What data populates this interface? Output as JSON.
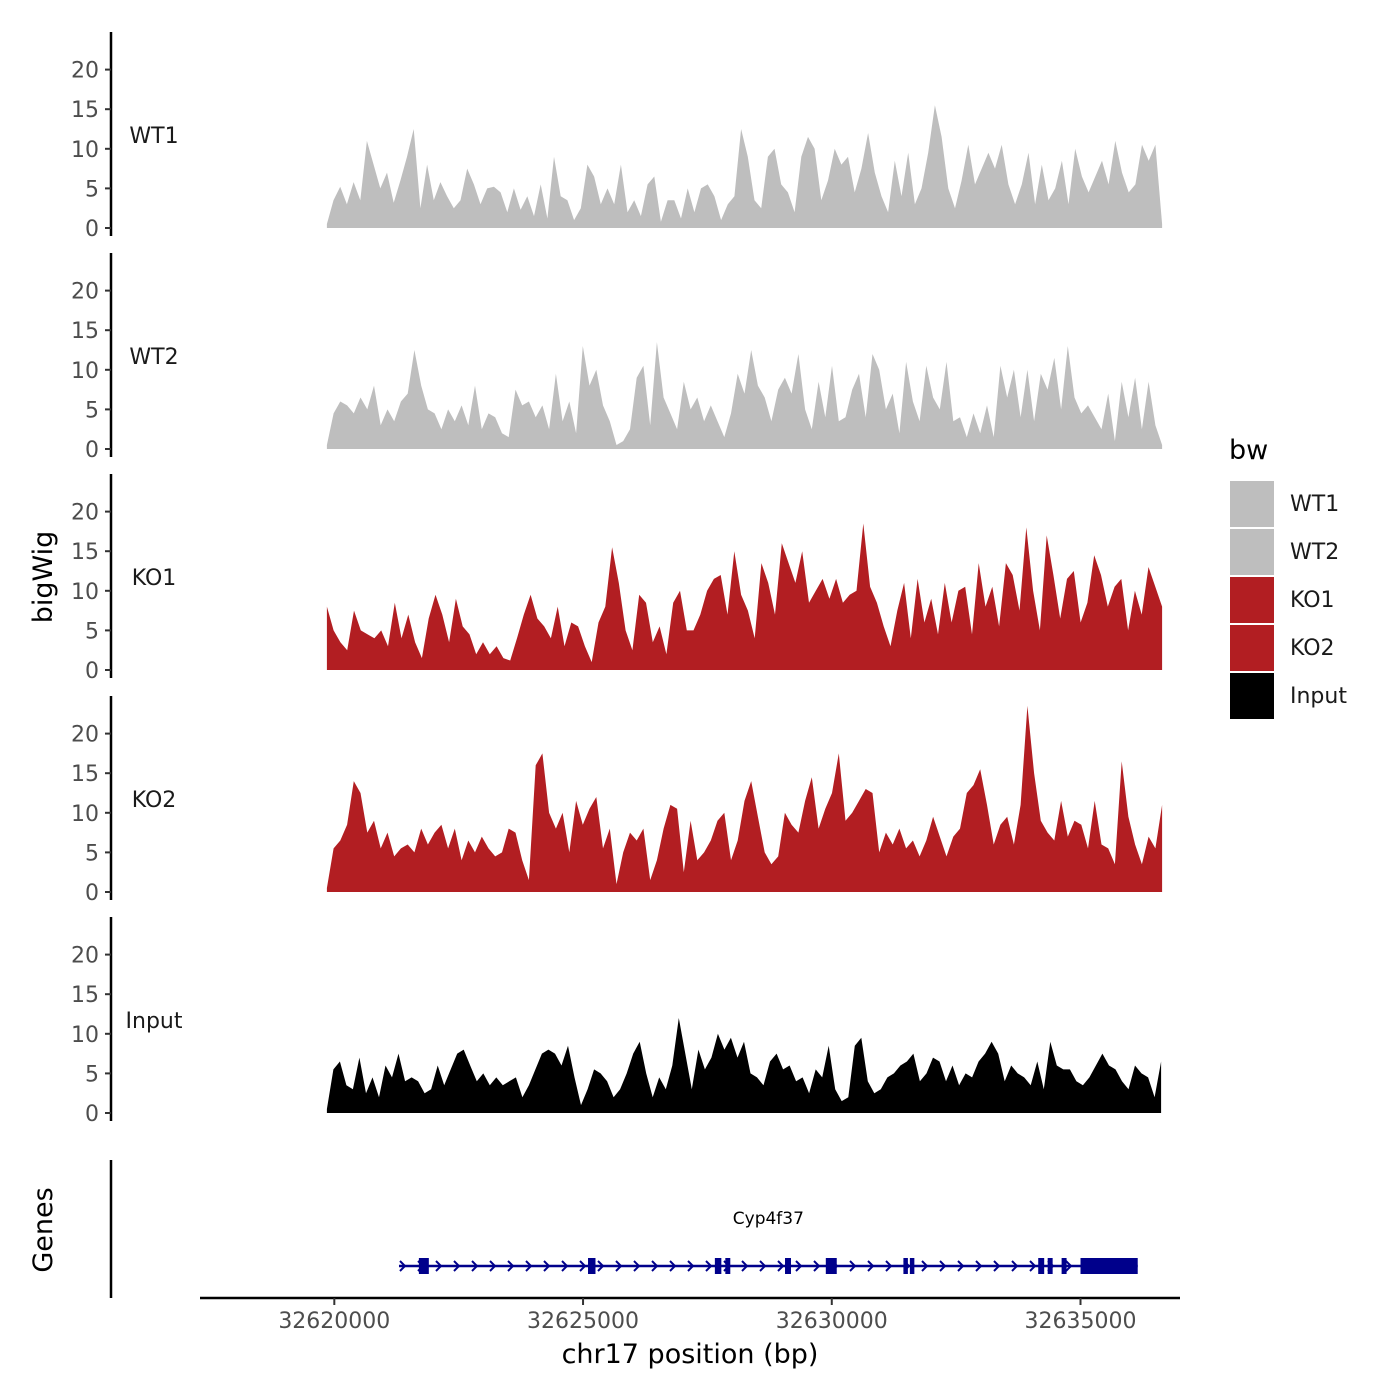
{
  "chart_data": {
    "type": "area",
    "x_range": [
      32617300,
      32637000
    ],
    "y_range": [
      0,
      25
    ],
    "y_ticks": [
      0,
      5,
      10,
      15,
      20
    ],
    "x_ticks": [
      32620000,
      32625000,
      32630000,
      32635000
    ],
    "x_tick_labels": [
      "32620000",
      "32625000",
      "32630000",
      "32635000"
    ],
    "xlabel": "chr17 position (bp)",
    "ylabel": "bigWig",
    "genes_label": "Genes",
    "legend": {
      "title": "bw",
      "position": "right",
      "entries": [
        {
          "label": "WT1",
          "color": "#bebebe"
        },
        {
          "label": "WT2",
          "color": "#bebebe"
        },
        {
          "label": "KO1",
          "color": "#b21e22"
        },
        {
          "label": "KO2",
          "color": "#b21e22"
        },
        {
          "label": "Input",
          "color": "#000000"
        }
      ]
    },
    "series": [
      {
        "name": "WT1",
        "color": "#bebebe",
        "x_start": 32619850,
        "x_end": 32636640,
        "values": [
          0.5,
          3.5,
          5.2,
          3.0,
          5.8,
          3.5,
          11.0,
          8.0,
          5.0,
          7.0,
          3.2,
          6.0,
          9.0,
          12.5,
          2.5,
          8.0,
          3.5,
          5.8,
          4.0,
          2.5,
          3.5,
          7.5,
          5.5,
          3.0,
          5.0,
          5.2,
          4.5,
          2.0,
          5.0,
          2.3,
          4.0,
          1.5,
          5.5,
          1.2,
          9.0,
          4.0,
          3.5,
          1.0,
          2.5,
          8.0,
          6.5,
          3.0,
          5.0,
          3.0,
          8.0,
          2.0,
          3.5,
          1.5,
          5.5,
          6.5,
          0.8,
          3.5,
          3.5,
          1.2,
          5.0,
          2.0,
          5.0,
          5.5,
          4.0,
          1.0,
          3.0,
          4.0,
          12.5,
          9.0,
          3.5,
          2.5,
          9.0,
          10.0,
          5.5,
          4.5,
          2.0,
          9.0,
          11.5,
          10.0,
          3.5,
          6.0,
          10.0,
          8.0,
          9.0,
          4.5,
          7.5,
          12.0,
          7.0,
          4.0,
          2.0,
          8.5,
          4.0,
          9.5,
          3.0,
          5.0,
          9.5,
          15.5,
          11.5,
          5.0,
          2.5,
          6.0,
          10.5,
          5.5,
          7.5,
          9.5,
          7.5,
          10.5,
          5.5,
          3.0,
          5.5,
          9.5,
          3.0,
          8.0,
          3.5,
          5.0,
          8.5,
          3.0,
          10.0,
          6.5,
          4.5,
          6.5,
          8.5,
          5.5,
          11.0,
          7.0,
          4.5,
          5.5,
          10.5,
          8.5,
          10.5,
          0.5
        ]
      },
      {
        "name": "WT2",
        "color": "#bebebe",
        "x_start": 32619850,
        "x_end": 32636640,
        "values": [
          0.5,
          4.5,
          6.0,
          5.5,
          4.5,
          6.5,
          5.0,
          8.0,
          3.0,
          5.0,
          3.5,
          6.0,
          7.0,
          12.5,
          8.0,
          5.0,
          4.5,
          2.5,
          5.0,
          3.5,
          5.5,
          3.0,
          8.0,
          2.5,
          4.5,
          4.0,
          2.0,
          1.5,
          7.5,
          5.5,
          6.0,
          4.0,
          5.5,
          2.5,
          9.5,
          3.5,
          6.0,
          2.0,
          13.0,
          8.0,
          10.0,
          5.5,
          3.5,
          0.5,
          1.0,
          2.5,
          9.0,
          10.5,
          3.0,
          13.5,
          6.5,
          4.5,
          2.5,
          8.5,
          5.0,
          6.5,
          3.5,
          5.5,
          3.5,
          1.5,
          4.5,
          9.5,
          7.0,
          12.5,
          8.0,
          6.5,
          3.5,
          7.5,
          9.0,
          7.0,
          12.0,
          5.0,
          2.5,
          8.5,
          4.0,
          10.5,
          3.5,
          4.0,
          7.5,
          9.5,
          4.0,
          12.0,
          10.0,
          5.0,
          7.0,
          2.0,
          11.0,
          6.0,
          3.5,
          10.5,
          6.5,
          5.0,
          11.0,
          3.5,
          4.0,
          1.5,
          4.5,
          2.0,
          5.5,
          1.5,
          10.5,
          6.5,
          10.0,
          4.0,
          10.0,
          3.5,
          9.5,
          7.5,
          11.5,
          5.0,
          13.0,
          6.5,
          4.5,
          5.5,
          4.0,
          2.5,
          7.0,
          1.0,
          8.5,
          4.0,
          9.0,
          2.5,
          8.5,
          3.0,
          0.5
        ]
      },
      {
        "name": "KO1",
        "color": "#b21e22",
        "x_start": 32619850,
        "x_end": 32636640,
        "values": [
          8.0,
          5.0,
          3.5,
          2.5,
          7.5,
          5.0,
          4.5,
          4.0,
          5.0,
          3.0,
          8.5,
          4.0,
          7.0,
          3.5,
          1.5,
          6.5,
          9.5,
          7.0,
          3.5,
          9.0,
          5.5,
          4.5,
          2.0,
          3.5,
          2.0,
          3.0,
          1.5,
          1.2,
          4.0,
          7.0,
          9.5,
          6.5,
          5.5,
          4.0,
          8.0,
          3.0,
          6.0,
          5.5,
          3.0,
          1.0,
          6.0,
          8.0,
          15.5,
          11.0,
          5.0,
          2.5,
          9.5,
          8.5,
          3.5,
          5.5,
          2.0,
          8.5,
          10.0,
          5.0,
          5.0,
          7.0,
          10.0,
          11.5,
          12.0,
          7.0,
          15.0,
          9.5,
          7.5,
          4.0,
          13.5,
          11.0,
          7.0,
          16.0,
          13.5,
          11.0,
          15.0,
          8.5,
          10.0,
          11.5,
          9.0,
          11.5,
          8.5,
          9.5,
          10.0,
          18.5,
          10.5,
          8.5,
          5.5,
          3.0,
          7.5,
          11.0,
          4.0,
          11.5,
          6.0,
          9.0,
          4.5,
          11.0,
          6.0,
          10.0,
          10.5,
          4.5,
          13.5,
          8.0,
          10.5,
          5.5,
          13.5,
          12.0,
          7.5,
          18.0,
          10.0,
          5.0,
          17.0,
          12.0,
          6.5,
          11.5,
          12.5,
          6.0,
          8.5,
          14.5,
          12.0,
          8.0,
          10.5,
          11.5,
          5.0,
          10.0,
          7.0,
          13.0,
          10.5,
          8.0
        ]
      },
      {
        "name": "KO2",
        "color": "#b21e22",
        "x_start": 32619850,
        "x_end": 32636640,
        "values": [
          0.5,
          5.5,
          6.5,
          8.5,
          14.0,
          12.5,
          7.5,
          9.0,
          5.5,
          7.5,
          4.5,
          5.5,
          6.0,
          5.0,
          8.0,
          6.0,
          7.5,
          8.5,
          5.5,
          8.0,
          4.0,
          6.5,
          5.0,
          7.0,
          5.5,
          4.5,
          5.0,
          8.0,
          7.5,
          4.0,
          1.5,
          16.0,
          17.5,
          10.0,
          8.0,
          10.0,
          5.0,
          11.5,
          8.5,
          10.5,
          12.0,
          5.5,
          8.0,
          1.0,
          5.0,
          7.5,
          6.5,
          8.0,
          1.5,
          4.0,
          8.0,
          11.0,
          10.5,
          2.5,
          9.0,
          4.0,
          5.0,
          6.5,
          9.0,
          10.0,
          4.0,
          6.5,
          11.5,
          14.0,
          9.5,
          5.0,
          3.5,
          4.5,
          10.0,
          8.5,
          7.5,
          11.5,
          14.5,
          8.0,
          10.5,
          12.5,
          17.5,
          9.0,
          10.0,
          11.5,
          13.0,
          12.5,
          5.0,
          7.5,
          6.0,
          8.0,
          5.5,
          6.5,
          4.5,
          6.5,
          9.5,
          7.0,
          4.5,
          7.0,
          8.0,
          12.5,
          13.5,
          15.5,
          11.0,
          6.0,
          8.5,
          9.5,
          6.0,
          11.0,
          23.5,
          15.0,
          9.0,
          7.5,
          6.5,
          11.5,
          7.0,
          9.0,
          8.5,
          5.5,
          11.5,
          6.0,
          5.5,
          3.5,
          16.5,
          9.5,
          6.0,
          3.5,
          7.0,
          5.5,
          11.0
        ]
      },
      {
        "name": "Input",
        "color": "#000000",
        "x_start": 32619850,
        "x_end": 32636620,
        "values": [
          0.5,
          5.5,
          6.5,
          3.5,
          3.0,
          7.0,
          2.5,
          4.5,
          2.0,
          6.0,
          4.5,
          7.5,
          4.0,
          4.5,
          4.0,
          2.5,
          3.0,
          6.0,
          3.5,
          5.5,
          7.5,
          8.0,
          6.0,
          4.0,
          5.0,
          3.5,
          4.5,
          3.5,
          4.0,
          4.5,
          2.0,
          3.5,
          5.5,
          7.5,
          8.0,
          7.5,
          6.0,
          8.5,
          4.5,
          1.0,
          3.0,
          5.5,
          5.0,
          4.0,
          2.0,
          3.0,
          5.0,
          7.5,
          9.0,
          5.0,
          2.0,
          4.5,
          3.0,
          6.0,
          12.0,
          7.5,
          3.0,
          8.0,
          5.5,
          7.0,
          10.0,
          8.0,
          9.5,
          7.0,
          9.0,
          5.0,
          4.5,
          3.5,
          6.5,
          7.5,
          5.5,
          6.0,
          4.0,
          4.5,
          2.5,
          5.5,
          4.5,
          8.5,
          3.0,
          1.5,
          2.0,
          8.5,
          9.5,
          4.0,
          2.5,
          3.0,
          4.5,
          5.0,
          6.0,
          6.5,
          7.5,
          4.0,
          5.0,
          7.0,
          6.5,
          4.0,
          6.0,
          3.5,
          5.0,
          4.5,
          6.5,
          7.5,
          9.0,
          7.5,
          4.0,
          6.0,
          5.0,
          4.5,
          3.5,
          6.5,
          3.0,
          9.0,
          6.0,
          5.5,
          5.5,
          4.0,
          3.5,
          4.5,
          6.0,
          7.5,
          6.0,
          5.5,
          4.0,
          3.0,
          6.0,
          5.0,
          4.5,
          2.0,
          6.5
        ]
      }
    ],
    "gene": {
      "name": "Cyp4f37",
      "strand": "+",
      "color": "#00008b",
      "start": 32621300,
      "end": 32636150,
      "exons": [
        [
          32621700,
          32621900
        ],
        [
          32625100,
          32625250
        ],
        [
          32627650,
          32627780
        ],
        [
          32627860,
          32627960
        ],
        [
          32629060,
          32629180
        ],
        [
          32629880,
          32630100
        ],
        [
          32631440,
          32631530
        ],
        [
          32631570,
          32631660
        ],
        [
          32634150,
          32634270
        ],
        [
          32634340,
          32634440
        ],
        [
          32634620,
          32634720
        ],
        [
          32635000,
          32636150
        ]
      ]
    }
  }
}
